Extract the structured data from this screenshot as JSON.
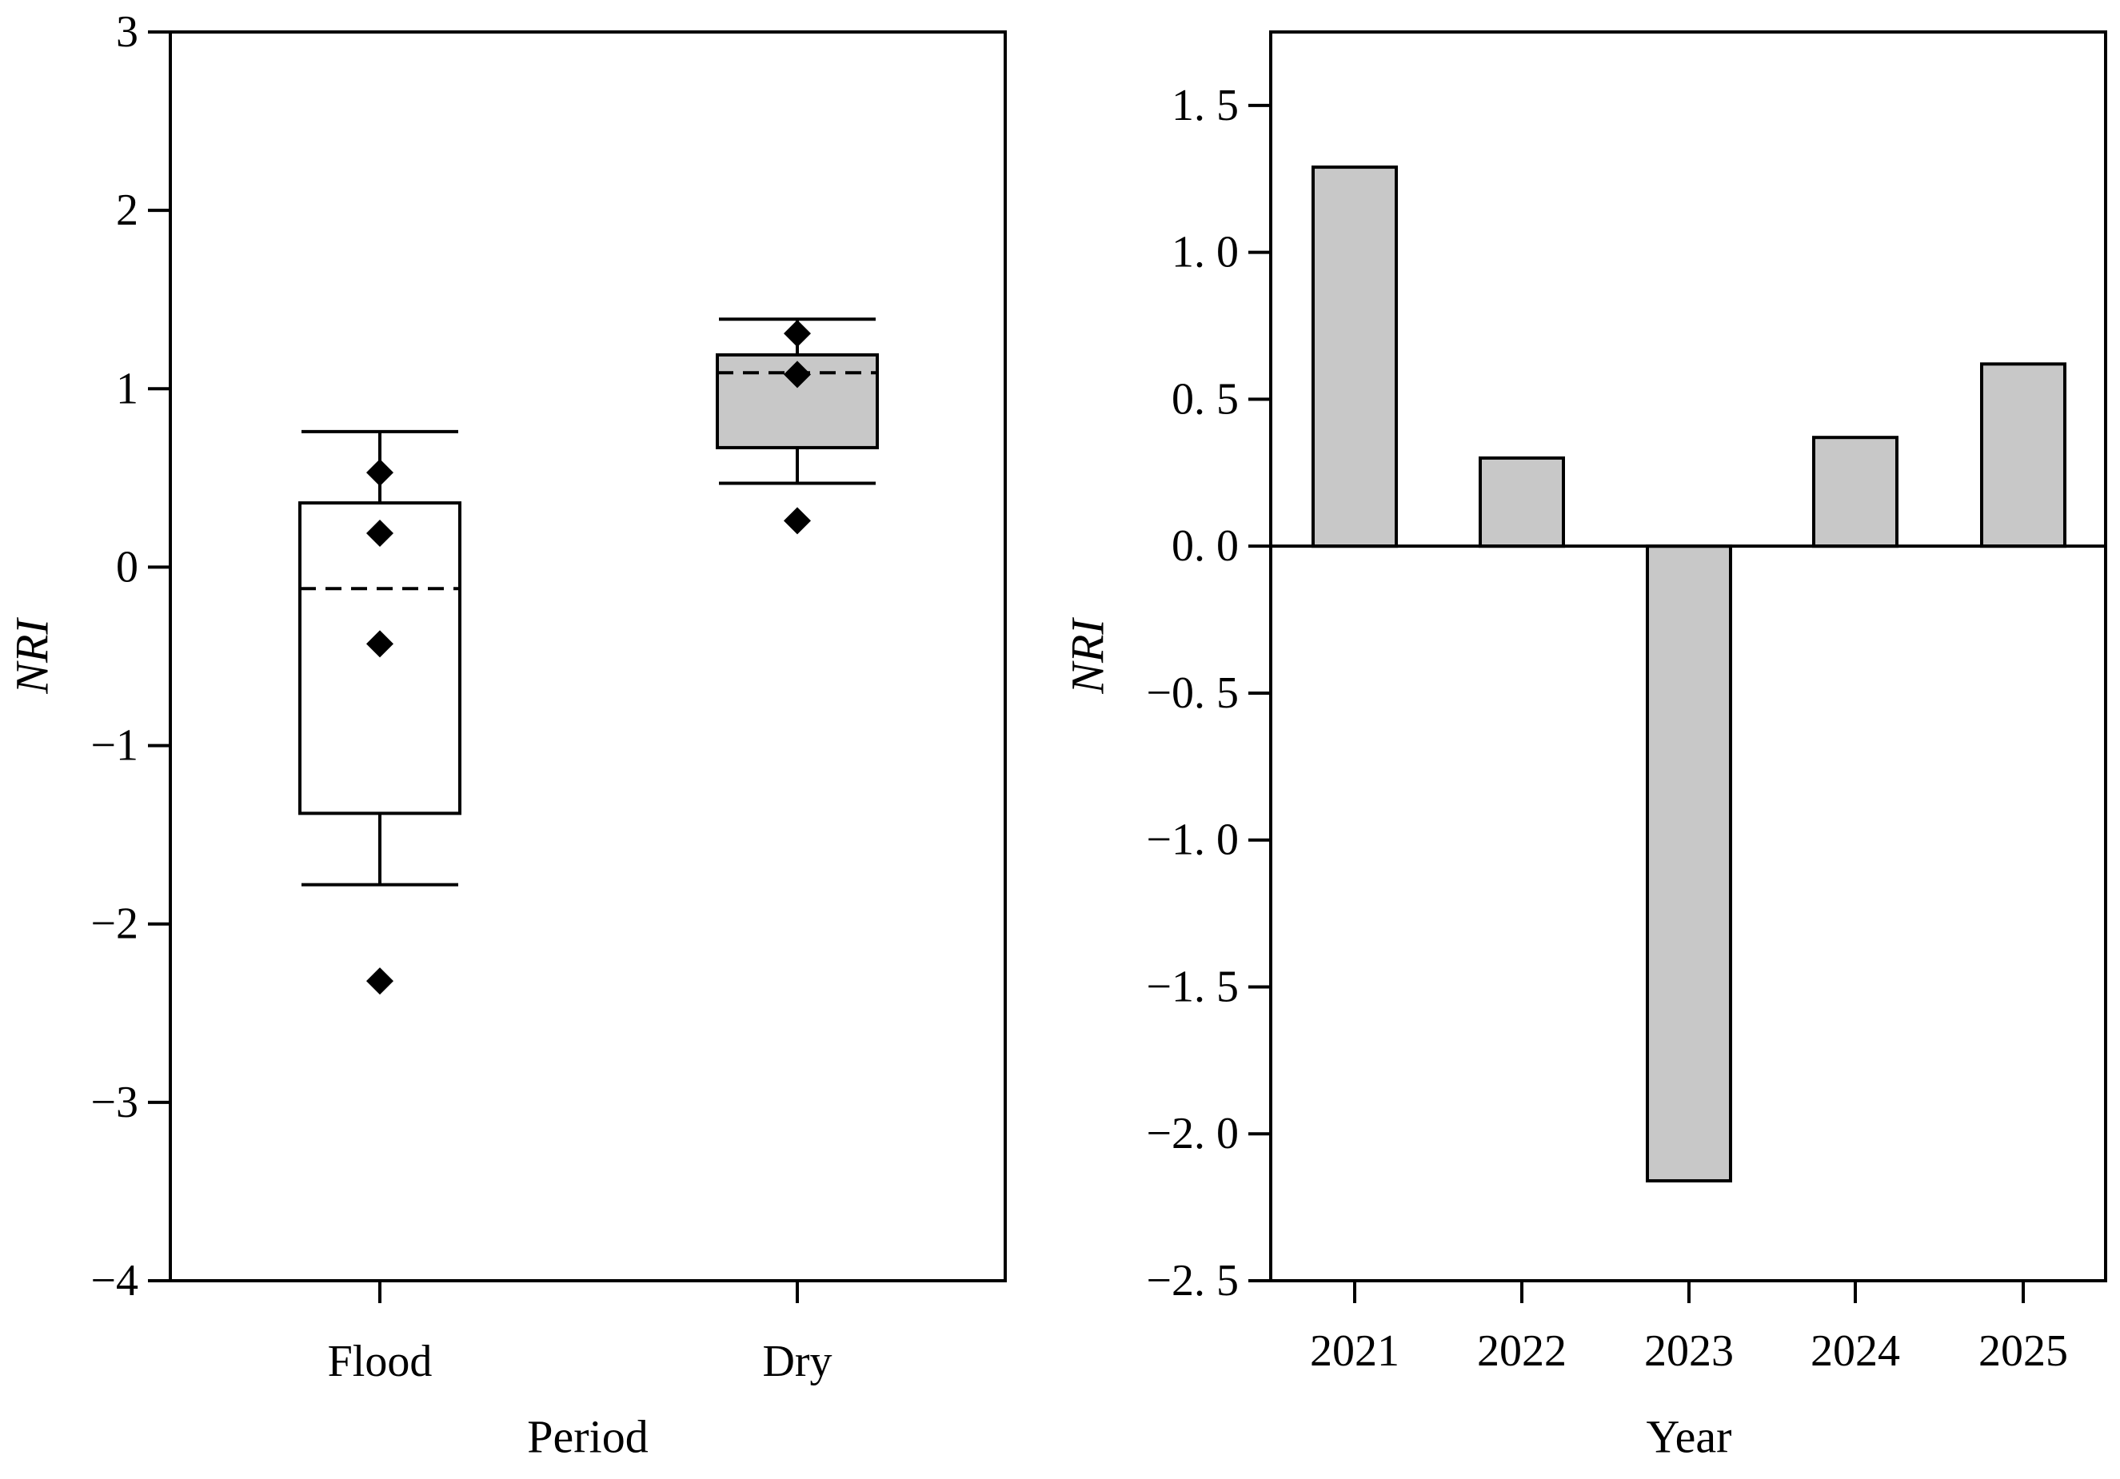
{
  "chart_data": [
    {
      "type": "box",
      "xlabel": "Period",
      "ylabel": "NRI",
      "ylim": [
        -4,
        3
      ],
      "yticks": [
        -4,
        -3,
        -2,
        -1,
        0,
        1,
        2,
        3
      ],
      "ytick_labels": [
        "−4",
        "−3",
        "−2",
        "−1",
        "0",
        "1",
        "2",
        "3"
      ],
      "categories": [
        "Flood",
        "Dry"
      ],
      "boxes": [
        {
          "category": "Flood",
          "fill": "#ffffff",
          "whisker_low": -1.78,
          "q1": -1.38,
          "mean": -0.12,
          "q3": 0.36,
          "whisker_high": 0.76,
          "points": [
            0.53,
            0.19,
            -0.43,
            -2.32
          ]
        },
        {
          "category": "Dry",
          "fill": "#c8c8c8",
          "whisker_low": 0.47,
          "q1": 0.67,
          "mean": 1.09,
          "q3": 1.19,
          "whisker_high": 1.39,
          "points": [
            1.31,
            1.08,
            0.26
          ]
        }
      ]
    },
    {
      "type": "bar",
      "xlabel": "Year",
      "ylabel": "NRI",
      "ylim": [
        -2.5,
        1.75
      ],
      "yticks": [
        -2.5,
        -2.0,
        -1.5,
        -1.0,
        -0.5,
        0.0,
        0.5,
        1.0,
        1.5
      ],
      "ytick_labels": [
        "−2. 5",
        "−2. 0",
        "−1. 5",
        "−1. 0",
        "−0. 5",
        "0. 0",
        "0. 5",
        "1. 0",
        "1. 5"
      ],
      "categories": [
        "2021",
        "2022",
        "2023",
        "2024",
        "2025"
      ],
      "values": [
        1.29,
        0.3,
        -2.16,
        0.37,
        0.62
      ],
      "bar_color": "#c8c8c8"
    }
  ]
}
